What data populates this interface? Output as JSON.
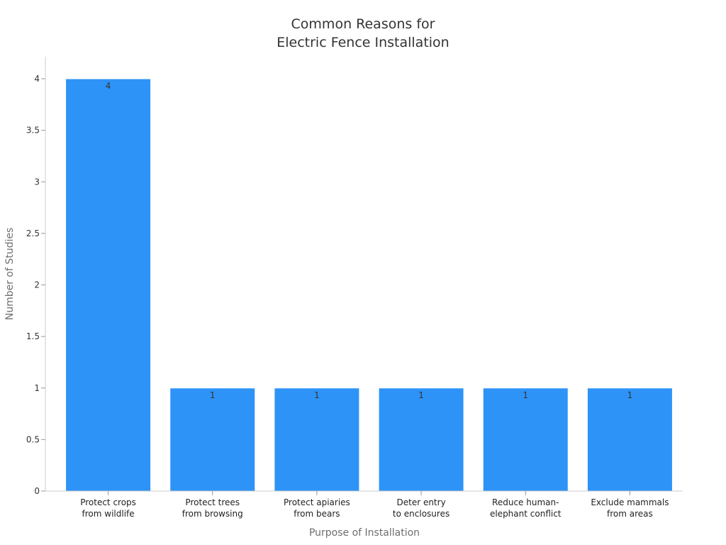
{
  "chart_data": {
    "type": "bar",
    "title_lines": [
      "Common Reasons for",
      "Electric Fence Installation"
    ],
    "xlabel": "Purpose of Installation",
    "ylabel": "Number of Studies",
    "ylim": [
      0,
      4
    ],
    "yticks": [
      "0",
      "0.5",
      "1",
      "1.5",
      "2",
      "2.5",
      "3",
      "3.5",
      "4"
    ],
    "categories": [
      [
        "Protect crops",
        "from wildlife"
      ],
      [
        "Protect trees",
        "from browsing"
      ],
      [
        "Protect apiaries",
        "from bears"
      ],
      [
        "Deter entry",
        "to enclosures"
      ],
      [
        "Reduce human-",
        "elephant conflict"
      ],
      [
        "Exclude mammals",
        "from areas"
      ]
    ],
    "values": [
      4,
      1,
      1,
      1,
      1,
      1
    ],
    "data_labels": [
      "4",
      "1",
      "1",
      "1",
      "1",
      "1"
    ],
    "bar_color": "#2e93f7",
    "grid": false,
    "legend": "none"
  }
}
